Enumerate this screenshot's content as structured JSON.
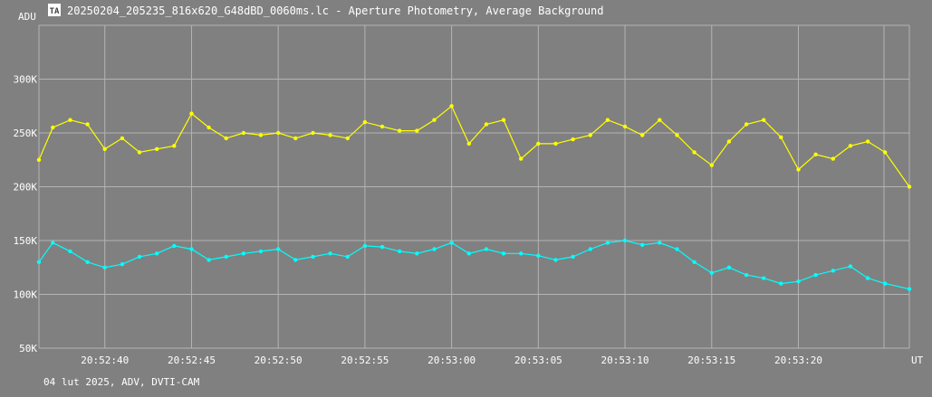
{
  "app": {
    "title": "20250204_205235_816x620_G48dBD_0060ms.lc - Aperture Photometry, Average Background",
    "footer": "04 lut 2025, ADV, DVTI-CAM",
    "logo_letters": "TA"
  },
  "colors": {
    "background": "#808080",
    "grid": "#b4b4b4",
    "text": "#ffffff",
    "series_target": "#ffff00",
    "series_background": "#00ffff"
  },
  "chart_data": {
    "type": "line",
    "title": "20250204_205235_816x620_G48dBD_0060ms.lc - Aperture Photometry, Average Background",
    "xlabel": "UT",
    "ylabel": "ADU",
    "xlim": [
      "20:52:36.2",
      "20:53:26.4"
    ],
    "ylim": [
      50000,
      350000
    ],
    "y_ticks": [
      {
        "value": 50000,
        "label": "50K"
      },
      {
        "value": 100000,
        "label": "100K"
      },
      {
        "value": 150000,
        "label": "150K"
      },
      {
        "value": 200000,
        "label": "200K"
      },
      {
        "value": 250000,
        "label": "250K"
      },
      {
        "value": 300000,
        "label": "300K"
      }
    ],
    "x_ticks": [
      "20:52:40",
      "20:52:45",
      "20:52:50",
      "20:52:55",
      "20:53:00",
      "20:53:05",
      "20:53:10",
      "20:53:15",
      "20:53:20"
    ],
    "grid": true,
    "markers": true,
    "series": [
      {
        "color": "#ffff00",
        "x": [
          "20:52:36.2",
          "20:52:37.0",
          "20:52:38.0",
          "20:52:39.0",
          "20:52:40.0",
          "20:52:41.0",
          "20:52:42.0",
          "20:52:43.0",
          "20:52:44.0",
          "20:52:45.0",
          "20:52:46.0",
          "20:52:47.0",
          "20:52:48.0",
          "20:52:49.0",
          "20:52:50.0",
          "20:52:51.0",
          "20:52:52.0",
          "20:52:53.0",
          "20:52:54.0",
          "20:52:55.0",
          "20:52:56.0",
          "20:52:57.0",
          "20:52:58.0",
          "20:52:59.0",
          "20:53:00.0",
          "20:53:01.0",
          "20:53:02.0",
          "20:53:03.0",
          "20:53:04.0",
          "20:53:05.0",
          "20:53:06.0",
          "20:53:07.0",
          "20:53:08.0",
          "20:53:09.0",
          "20:53:10.0",
          "20:53:11.0",
          "20:53:12.0",
          "20:53:13.0",
          "20:53:14.0",
          "20:53:15.0",
          "20:53:16.0",
          "20:53:17.0",
          "20:53:18.0",
          "20:53:19.0",
          "20:53:20.0",
          "20:53:21.0",
          "20:53:22.0",
          "20:53:23.0",
          "20:53:24.0",
          "20:53:25.0",
          "20:53:26.4"
        ],
        "values": [
          225000,
          255000,
          262000,
          258000,
          235000,
          245000,
          232000,
          235000,
          238000,
          268000,
          255000,
          245000,
          250000,
          248000,
          250000,
          245000,
          250000,
          248000,
          245000,
          260000,
          256000,
          252000,
          252000,
          262000,
          275000,
          240000,
          258000,
          262000,
          226000,
          240000,
          240000,
          244000,
          248000,
          262000,
          256000,
          248000,
          262000,
          248000,
          232000,
          220000,
          242000,
          258000,
          262000,
          246000,
          216000,
          230000,
          226000,
          238000,
          242000,
          232000,
          200000
        ]
      },
      {
        "color": "#00ffff",
        "x": [
          "20:52:36.2",
          "20:52:37.0",
          "20:52:38.0",
          "20:52:39.0",
          "20:52:40.0",
          "20:52:41.0",
          "20:52:42.0",
          "20:52:43.0",
          "20:52:44.0",
          "20:52:45.0",
          "20:52:46.0",
          "20:52:47.0",
          "20:52:48.0",
          "20:52:49.0",
          "20:52:50.0",
          "20:52:51.0",
          "20:52:52.0",
          "20:52:53.0",
          "20:52:54.0",
          "20:52:55.0",
          "20:52:56.0",
          "20:52:57.0",
          "20:52:58.0",
          "20:52:59.0",
          "20:53:00.0",
          "20:53:01.0",
          "20:53:02.0",
          "20:53:03.0",
          "20:53:04.0",
          "20:53:05.0",
          "20:53:06.0",
          "20:53:07.0",
          "20:53:08.0",
          "20:53:09.0",
          "20:53:10.0",
          "20:53:11.0",
          "20:53:12.0",
          "20:53:13.0",
          "20:53:14.0",
          "20:53:15.0",
          "20:53:16.0",
          "20:53:17.0",
          "20:53:18.0",
          "20:53:19.0",
          "20:53:20.0",
          "20:53:21.0",
          "20:53:22.0",
          "20:53:23.0",
          "20:53:24.0",
          "20:53:25.0",
          "20:53:26.4"
        ],
        "values": [
          130000,
          148000,
          140000,
          130000,
          125000,
          128000,
          135000,
          138000,
          145000,
          142000,
          132000,
          135000,
          138000,
          140000,
          142000,
          132000,
          135000,
          138000,
          135000,
          145000,
          144000,
          140000,
          138000,
          142000,
          148000,
          138000,
          142000,
          138000,
          138000,
          136000,
          132000,
          135000,
          142000,
          148000,
          150000,
          146000,
          148000,
          142000,
          130000,
          120000,
          125000,
          118000,
          115000,
          110000,
          112000,
          118000,
          122000,
          126000,
          115000,
          110000,
          105000
        ]
      }
    ]
  }
}
